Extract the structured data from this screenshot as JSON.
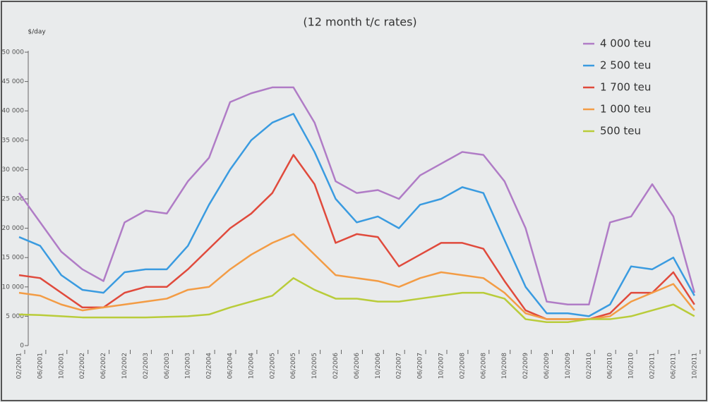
{
  "chart_data": {
    "type": "line",
    "title": "(12 month t/c rates)",
    "y_label": "$/day",
    "categories": [
      "02/2001",
      "06/2001",
      "10/2001",
      "02/2002",
      "06/2002",
      "10/2002",
      "02/2003",
      "06/2003",
      "10/2003",
      "02/2004",
      "06/2004",
      "10/2004",
      "02/2005",
      "06/2005",
      "10/2005",
      "02/2006",
      "06/2006",
      "10/2006",
      "02/2007",
      "06/2007",
      "10/2007",
      "02/2008",
      "06/2008",
      "10/2008",
      "02/2009",
      "06/2009",
      "10/2009",
      "02/2010",
      "06/2010",
      "10/2010",
      "02/2011",
      "06/2011",
      "10/2011"
    ],
    "series": [
      {
        "name": "4 000 teu",
        "color": "#b07cc6",
        "values": [
          26000,
          21000,
          16000,
          13000,
          11000,
          21000,
          23000,
          22500,
          28000,
          32000,
          41500,
          43000,
          44000,
          44000,
          38000,
          28000,
          26000,
          26500,
          25000,
          29000,
          31000,
          33000,
          32500,
          28000,
          20000,
          7500,
          7000,
          7000,
          21000,
          22000,
          27500,
          22000,
          9000
        ]
      },
      {
        "name": "2 500 teu",
        "color": "#3a9be0",
        "values": [
          18500,
          17000,
          12000,
          9500,
          9000,
          12500,
          13000,
          13000,
          17000,
          24000,
          30000,
          35000,
          38000,
          39500,
          33000,
          25000,
          21000,
          22000,
          20000,
          24000,
          25000,
          27000,
          26000,
          18000,
          10000,
          5500,
          5500,
          5000,
          7000,
          13500,
          13000,
          15000,
          8500
        ]
      },
      {
        "name": "1 700 teu",
        "color": "#e04a3c",
        "values": [
          12000,
          11500,
          9000,
          6500,
          6500,
          9000,
          10000,
          10000,
          13000,
          16500,
          20000,
          22500,
          26000,
          32500,
          27500,
          17500,
          19000,
          18500,
          13500,
          15500,
          17500,
          17500,
          16500,
          11000,
          6000,
          4500,
          4500,
          4500,
          5500,
          9000,
          9000,
          12500,
          7000
        ]
      },
      {
        "name": "1 000 teu",
        "color": "#f39c45",
        "values": [
          9000,
          8500,
          7000,
          6000,
          6500,
          7000,
          7500,
          8000,
          9500,
          10000,
          13000,
          15500,
          17500,
          19000,
          15500,
          12000,
          11500,
          11000,
          10000,
          11500,
          12500,
          12000,
          11500,
          9000,
          5500,
          4500,
          4500,
          4500,
          5000,
          7500,
          9000,
          10500,
          6000
        ]
      },
      {
        "name": "500 teu",
        "color": "#b9cc3a",
        "values": [
          5300,
          5200,
          5000,
          4800,
          4800,
          4800,
          4800,
          4900,
          5000,
          5300,
          6500,
          7500,
          8500,
          11500,
          9500,
          8000,
          8000,
          7500,
          7500,
          8000,
          8500,
          9000,
          9000,
          8000,
          4500,
          4000,
          4000,
          4500,
          4500,
          5000,
          6000,
          7000,
          5000
        ]
      }
    ],
    "ylim": [
      0,
      50000
    ],
    "yticks": [
      0,
      {
        "value": 5000,
        "label": "5 000"
      },
      {
        "value": 10000,
        "label": "10 000"
      },
      {
        "value": 15000,
        "label": "15 000"
      },
      {
        "value": 20000,
        "label": "20 000"
      },
      {
        "value": 25000,
        "label": "25 000"
      },
      {
        "value": 30000,
        "label": "30 000"
      },
      {
        "value": 35000,
        "label": "35 000"
      },
      {
        "value": 40000,
        "label": "40 000"
      },
      {
        "value": 45000,
        "label": "45 000"
      },
      {
        "value": 50000,
        "label": "50 000"
      }
    ],
    "legend": "top-right"
  }
}
